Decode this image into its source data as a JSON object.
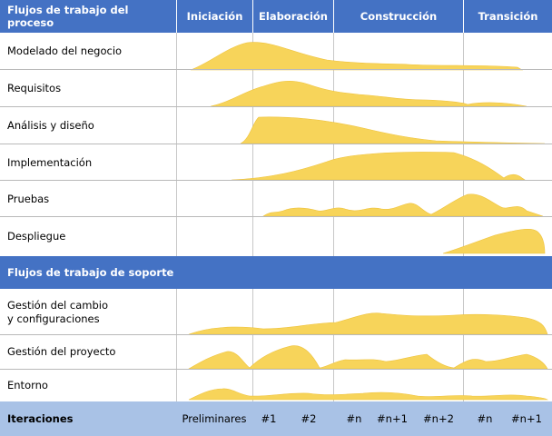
{
  "header": {
    "workflows_title": "Flujos de trabajo del proceso",
    "phases": [
      {
        "label": "Iniciación"
      },
      {
        "label": "Elaboración"
      },
      {
        "label": "Construcción"
      },
      {
        "label": "Transición"
      }
    ]
  },
  "process_rows": [
    {
      "label": "Modelado del negocio"
    },
    {
      "label": "Requisitos"
    },
    {
      "label": "Análisis y diseño"
    },
    {
      "label": "Implementación"
    },
    {
      "label": "Pruebas"
    },
    {
      "label": "Despliegue"
    }
  ],
  "support_title": "Flujos de trabajo de soporte",
  "support_rows": [
    {
      "label": "Gestión del cambio\ny configuraciones"
    },
    {
      "label": "Gestión del proyecto"
    },
    {
      "label": "Entorno"
    }
  ],
  "footer": {
    "title": "Iteraciones",
    "iterations": [
      "Preliminares",
      "#1",
      "#2",
      "#n",
      "#n+1",
      "#n+2",
      "#n",
      "#n+1"
    ]
  },
  "colors": {
    "header_blue": "#4472c4",
    "footer_blue": "#a9c2e6",
    "curve_fill": "#f7d45a"
  }
}
